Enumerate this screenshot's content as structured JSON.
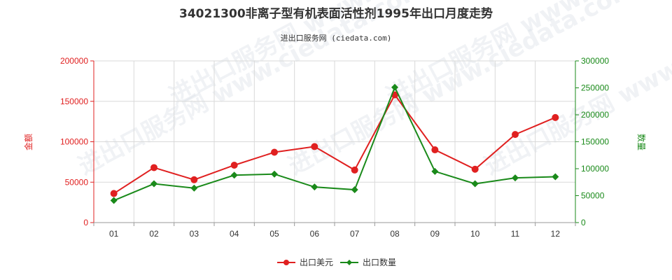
{
  "chart_data": {
    "type": "line",
    "title": "34021300非离子型有机表面活性剂1995年出口月度走势",
    "subtitle": "进出口服务网 (ciedata.com)",
    "watermark": "进出口服务网 www.ciedata.com",
    "x": [
      "01",
      "02",
      "03",
      "04",
      "05",
      "06",
      "07",
      "08",
      "09",
      "10",
      "11",
      "12"
    ],
    "y_left": {
      "label": "金额",
      "ylim": [
        0,
        200000
      ],
      "ticks": [
        0,
        50000,
        100000,
        150000,
        200000
      ],
      "tick_labels": [
        "0",
        "50000",
        "100000",
        "150000",
        "200000"
      ],
      "color": "#e02020"
    },
    "y_right": {
      "label": "数量",
      "ylim": [
        0,
        300000
      ],
      "ticks": [
        0,
        50000,
        100000,
        150000,
        200000,
        250000,
        300000
      ],
      "tick_labels": [
        "0",
        "50000",
        "100000",
        "150000",
        "200000",
        "250000",
        "300000"
      ],
      "color": "#1a8a1a"
    },
    "series": [
      {
        "name": "出口美元",
        "axis": "left",
        "color": "#e02020",
        "values": [
          36000,
          68000,
          53000,
          71000,
          87000,
          94000,
          65000,
          158000,
          90000,
          66000,
          109000,
          130000
        ]
      },
      {
        "name": "出口数量",
        "axis": "right",
        "color": "#1a8a1a",
        "values": [
          41000,
          72000,
          64000,
          88000,
          90000,
          66000,
          61000,
          251000,
          95000,
          72000,
          83000,
          85000
        ]
      }
    ],
    "grid": true,
    "legend": "bottom-center"
  }
}
